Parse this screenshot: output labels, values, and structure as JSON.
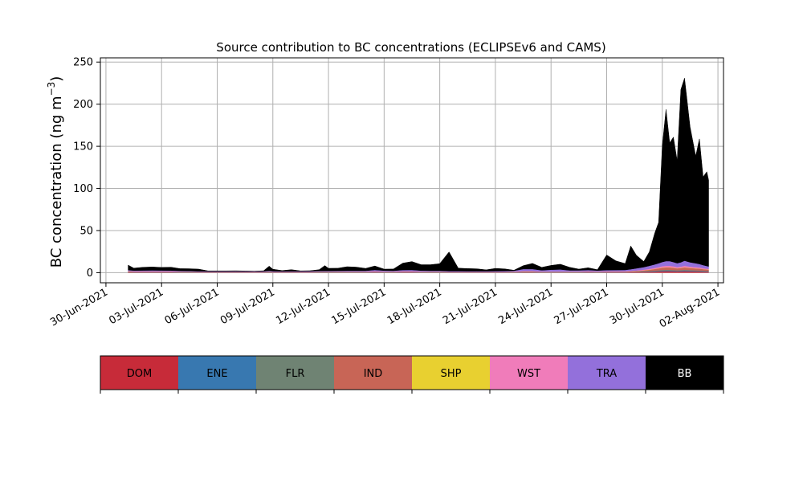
{
  "chart_data": {
    "type": "area",
    "stacked": true,
    "title": "Source contribution to BC concentrations (ECLIPSEv6 and CAMS)",
    "ylabel_prefix": "BC concentration (ng m",
    "ylabel_exp": "−3",
    "ylabel_suffix": ")",
    "xlabel": "",
    "x_unit": "days since 30-Jun-2021",
    "xlim": [
      -0.3,
      33.3
    ],
    "ylim": [
      -12,
      255
    ],
    "grid": true,
    "yticks": [
      0,
      50,
      100,
      150,
      200,
      250
    ],
    "ytick_labels": [
      "0",
      "50",
      "100",
      "150",
      "200",
      "250"
    ],
    "xticks": [
      0,
      3,
      6,
      9,
      12,
      15,
      18,
      21,
      24,
      27,
      30,
      33
    ],
    "xtick_labels": [
      "30-Jun-2021",
      "03-Jul-2021",
      "06-Jul-2021",
      "09-Jul-2021",
      "12-Jul-2021",
      "15-Jul-2021",
      "18-Jul-2021",
      "21-Jul-2021",
      "24-Jul-2021",
      "27-Jul-2021",
      "30-Jul-2021",
      "02-Aug-2021"
    ],
    "x": [
      1.2,
      1.5,
      2,
      2.5,
      3,
      3.5,
      4,
      4.5,
      5,
      5.5,
      6,
      6.5,
      7,
      7.5,
      8,
      8.5,
      8.8,
      9,
      9.5,
      10,
      10.5,
      11,
      11.5,
      11.8,
      12,
      12.5,
      13,
      13.5,
      14,
      14.5,
      15,
      15.5,
      16,
      16.5,
      17,
      17.5,
      18,
      18.5,
      19,
      19.5,
      20,
      20.5,
      21,
      21.5,
      22,
      22.5,
      23,
      23.5,
      24,
      24.5,
      25,
      25.5,
      26,
      26.5,
      27,
      27.5,
      28,
      28.3,
      28.6,
      29,
      29.3,
      29.6,
      29.8,
      30,
      30.2,
      30.4,
      30.6,
      30.8,
      31,
      31.2,
      31.5,
      31.8,
      32,
      32.2,
      32.4,
      32.5
    ],
    "legend_position": "below",
    "series": [
      {
        "name": "DOM",
        "color": "#c72b39",
        "label_color": "#000000",
        "values": [
          0.5,
          0.4,
          0.4,
          0.4,
          0.4,
          0.4,
          0.3,
          0.3,
          0.2,
          0.2,
          0.2,
          0.2,
          0.2,
          0.2,
          0.2,
          0.2,
          0.3,
          0.2,
          0.2,
          0.2,
          0.2,
          0.2,
          0.3,
          0.3,
          0.3,
          0.3,
          0.3,
          0.3,
          0.3,
          0.4,
          0.3,
          0.3,
          0.4,
          0.4,
          0.3,
          0.3,
          0.3,
          0.2,
          0.2,
          0.2,
          0.2,
          0.2,
          0.2,
          0.2,
          0.3,
          0.4,
          0.4,
          0.3,
          0.3,
          0.3,
          0.3,
          0.3,
          0.4,
          0.3,
          0.4,
          0.4,
          0.4,
          0.5,
          0.6,
          0.8,
          1.0,
          1.3,
          1.5,
          1.7,
          1.8,
          1.8,
          1.7,
          1.5,
          1.6,
          1.8,
          1.6,
          1.5,
          1.4,
          1.2,
          1.1,
          1.0
        ]
      },
      {
        "name": "ENE",
        "color": "#3878b0",
        "label_color": "#000000",
        "values": [
          0.2,
          0.2,
          0.2,
          0.2,
          0.2,
          0.2,
          0.1,
          0.1,
          0.1,
          0.1,
          0.1,
          0.1,
          0.1,
          0.1,
          0.1,
          0.1,
          0.1,
          0.1,
          0.1,
          0.1,
          0.1,
          0.1,
          0.1,
          0.1,
          0.1,
          0.1,
          0.1,
          0.1,
          0.1,
          0.2,
          0.1,
          0.1,
          0.2,
          0.2,
          0.1,
          0.1,
          0.1,
          0.1,
          0.1,
          0.1,
          0.1,
          0.1,
          0.1,
          0.1,
          0.1,
          0.2,
          0.2,
          0.1,
          0.1,
          0.1,
          0.1,
          0.1,
          0.2,
          0.1,
          0.2,
          0.2,
          0.2,
          0.2,
          0.3,
          0.4,
          0.5,
          0.6,
          0.7,
          0.8,
          0.9,
          0.9,
          0.8,
          0.7,
          0.8,
          0.9,
          0.8,
          0.7,
          0.7,
          0.6,
          0.5,
          0.5
        ]
      },
      {
        "name": "FLR",
        "color": "#6f8373",
        "label_color": "#000000",
        "values": [
          0.1,
          0.1,
          0.1,
          0.1,
          0.1,
          0.1,
          0.1,
          0.1,
          0.1,
          0.1,
          0.1,
          0.1,
          0.1,
          0.1,
          0.1,
          0.1,
          0.1,
          0.1,
          0.1,
          0.1,
          0.1,
          0.1,
          0.1,
          0.1,
          0.1,
          0.1,
          0.1,
          0.1,
          0.1,
          0.1,
          0.1,
          0.1,
          0.1,
          0.1,
          0.1,
          0.1,
          0.1,
          0.1,
          0.1,
          0.1,
          0.1,
          0.1,
          0.1,
          0.1,
          0.1,
          0.1,
          0.1,
          0.1,
          0.1,
          0.1,
          0.1,
          0.1,
          0.1,
          0.1,
          0.1,
          0.1,
          0.1,
          0.1,
          0.2,
          0.3,
          0.4,
          0.5,
          0.6,
          0.7,
          0.7,
          0.7,
          0.6,
          0.6,
          0.6,
          0.7,
          0.6,
          0.6,
          0.5,
          0.5,
          0.4,
          0.4
        ]
      },
      {
        "name": "IND",
        "color": "#c86556",
        "label_color": "#000000",
        "values": [
          0.6,
          0.5,
          0.5,
          0.5,
          0.5,
          0.5,
          0.4,
          0.4,
          0.3,
          0.3,
          0.3,
          0.3,
          0.3,
          0.3,
          0.3,
          0.3,
          0.4,
          0.3,
          0.3,
          0.3,
          0.3,
          0.3,
          0.4,
          0.4,
          0.4,
          0.4,
          0.4,
          0.4,
          0.4,
          0.5,
          0.4,
          0.4,
          0.5,
          0.5,
          0.4,
          0.4,
          0.4,
          0.3,
          0.3,
          0.3,
          0.3,
          0.3,
          0.3,
          0.3,
          0.4,
          0.6,
          0.6,
          0.4,
          0.4,
          0.4,
          0.4,
          0.4,
          0.5,
          0.4,
          0.5,
          0.5,
          0.5,
          0.7,
          0.9,
          1.2,
          1.5,
          2.0,
          2.3,
          2.6,
          2.8,
          2.8,
          2.6,
          2.4,
          2.5,
          2.8,
          2.5,
          2.3,
          2.2,
          1.9,
          1.7,
          1.6
        ]
      },
      {
        "name": "SHP",
        "color": "#e8d030",
        "label_color": "#000000",
        "values": [
          0.1,
          0.1,
          0.1,
          0.1,
          0.1,
          0.1,
          0.1,
          0.1,
          0.1,
          0.1,
          0.1,
          0.1,
          0.1,
          0.1,
          0.1,
          0.1,
          0.1,
          0.1,
          0.1,
          0.1,
          0.1,
          0.1,
          0.1,
          0.1,
          0.1,
          0.1,
          0.1,
          0.1,
          0.1,
          0.1,
          0.1,
          0.1,
          0.1,
          0.1,
          0.1,
          0.1,
          0.1,
          0.1,
          0.1,
          0.1,
          0.1,
          0.1,
          0.1,
          0.1,
          0.1,
          0.1,
          0.1,
          0.1,
          0.1,
          0.1,
          0.1,
          0.1,
          0.1,
          0.1,
          0.1,
          0.1,
          0.1,
          0.1,
          0.1,
          0.1,
          0.2,
          0.2,
          0.2,
          0.3,
          0.3,
          0.3,
          0.3,
          0.2,
          0.3,
          0.3,
          0.3,
          0.2,
          0.2,
          0.2,
          0.2,
          0.2
        ]
      },
      {
        "name": "WST",
        "color": "#f07cba",
        "label_color": "#000000",
        "values": [
          0.4,
          0.3,
          0.3,
          0.3,
          0.3,
          0.3,
          0.3,
          0.2,
          0.2,
          0.2,
          0.2,
          0.2,
          0.2,
          0.2,
          0.2,
          0.2,
          0.3,
          0.2,
          0.2,
          0.2,
          0.2,
          0.2,
          0.2,
          0.2,
          0.2,
          0.3,
          0.3,
          0.3,
          0.3,
          0.4,
          0.3,
          0.3,
          0.4,
          0.4,
          0.3,
          0.3,
          0.3,
          0.2,
          0.2,
          0.2,
          0.2,
          0.2,
          0.2,
          0.2,
          0.3,
          0.4,
          0.4,
          0.3,
          0.3,
          0.3,
          0.3,
          0.3,
          0.3,
          0.3,
          0.3,
          0.3,
          0.4,
          0.5,
          0.6,
          0.8,
          1.0,
          1.2,
          1.4,
          1.6,
          1.7,
          1.7,
          1.6,
          1.4,
          1.5,
          1.7,
          1.5,
          1.4,
          1.3,
          1.1,
          1.0,
          0.9
        ]
      },
      {
        "name": "TRA",
        "color": "#9370db",
        "label_color": "#000000",
        "values": [
          1.2,
          1.0,
          1.1,
          1.2,
          1.1,
          1.0,
          0.9,
          0.8,
          0.6,
          0.5,
          0.5,
          0.5,
          0.5,
          0.5,
          0.5,
          0.6,
          0.9,
          0.7,
          0.5,
          0.5,
          0.6,
          0.7,
          0.8,
          0.9,
          0.9,
          0.9,
          1.0,
          1.0,
          1.0,
          1.6,
          1.2,
          1.0,
          1.5,
          1.6,
          1.2,
          1.0,
          1.0,
          0.8,
          0.8,
          0.7,
          0.7,
          0.7,
          0.8,
          0.9,
          1.0,
          2.5,
          2.5,
          1.6,
          2.2,
          2.5,
          1.5,
          1.5,
          1.6,
          1.3,
          1.5,
          1.6,
          1.6,
          2.0,
          2.5,
          3.0,
          3.5,
          4.0,
          4.5,
          5.0,
          5.5,
          5.5,
          5.0,
          4.5,
          5.0,
          6.0,
          5.0,
          4.5,
          4.0,
          3.5,
          3.0,
          2.8
        ]
      },
      {
        "name": "BB",
        "color": "#000000",
        "label_color": "#ffffff",
        "values": [
          5.9,
          2.8,
          3.7,
          4.0,
          3.5,
          3.9,
          2.6,
          2.7,
          2.6,
          0.6,
          0.6,
          0.6,
          0.7,
          0.5,
          0.3,
          0.6,
          5.5,
          2.4,
          1.0,
          2.0,
          0.5,
          0.6,
          1.5,
          6.3,
          3.1,
          3.1,
          4.8,
          4.3,
          2.8,
          4.6,
          1.7,
          2.0,
          8.1,
          9.9,
          7.0,
          7.2,
          8.4,
          22.8,
          3.6,
          3.2,
          2.9,
          1.7,
          3.3,
          2.6,
          0.6,
          4.0,
          6.7,
          3.4,
          5.1,
          6.2,
          3.6,
          1.4,
          2.6,
          0.9,
          17.9,
          10.8,
          7.5,
          27.6,
          15.5,
          6.7,
          16.5,
          37.5,
          48.5,
          138.4,
          180.1,
          140.5,
          148.3,
          121.7,
          205.1,
          216.8,
          160.6,
          127.2,
          148.5,
          104.7,
          111.9,
          102.4
        ]
      }
    ]
  }
}
